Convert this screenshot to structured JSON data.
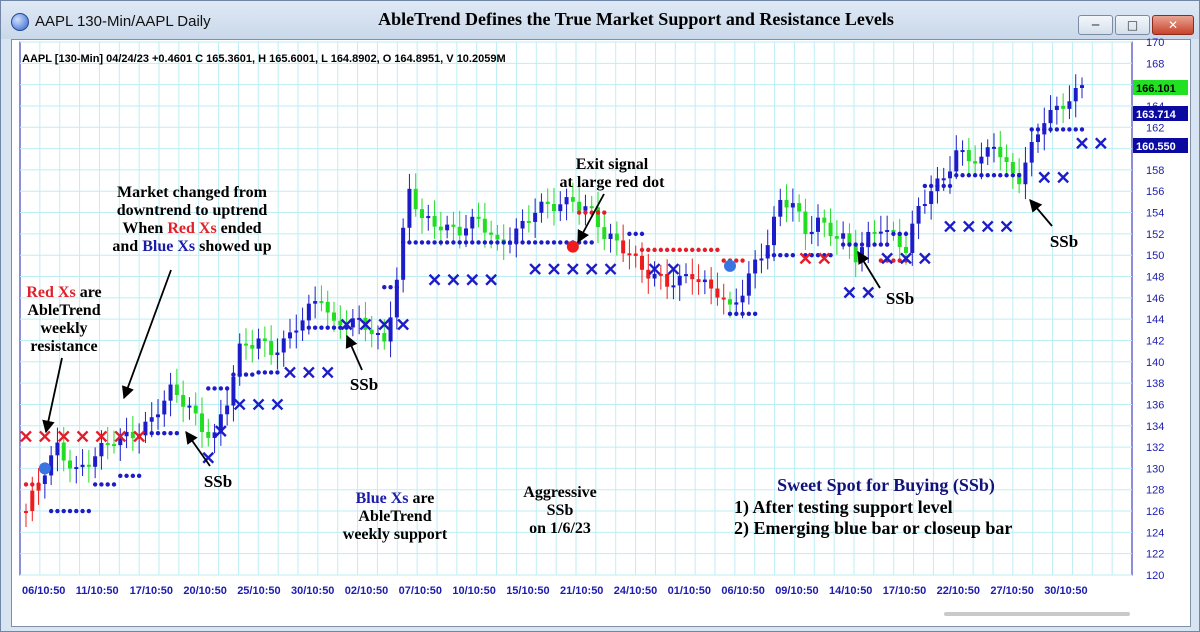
{
  "window": {
    "title": "AAPL 130-Min/AAPL Daily",
    "headline": "AbleTrend Defines the True Market Support and Resistance Levels",
    "buttons": {
      "minimize": "─",
      "maximize": "□",
      "close": "✕"
    }
  },
  "legend": "AAPL [130-Min] 04/24/23  +0.4601 C 165.3601, H 165.6001, L 164.8902, O 164.8951, V 10.2059M",
  "price_tags": [
    {
      "value": "166.101",
      "bg": "#22e022",
      "fg": "#000000"
    },
    {
      "value": "163.714",
      "bg": "#0a0aa0",
      "fg": "#ffffff"
    },
    {
      "value": "160.550",
      "bg": "#0a0aa0",
      "fg": "#ffffff"
    }
  ],
  "annotations": {
    "red_xs": [
      "Red Xs",
      " are",
      "AbleTrend",
      "weekly",
      "resistance"
    ],
    "market_changed": [
      "Market changed from",
      "downtrend to uptrend",
      "When ",
      "Red Xs",
      " ended",
      "and ",
      "Blue Xs",
      " showed up"
    ],
    "exit_signal": [
      "Exit signal",
      "at large red dot"
    ],
    "blue_xs": [
      "Blue Xs",
      " are",
      "AbleTrend",
      "weekly support"
    ],
    "aggressive": [
      "Aggressive",
      "SSb",
      "on 1/6/23"
    ],
    "ssb": "SSb",
    "sweet_spot": {
      "title": "Sweet Spot for Buying (SSb)",
      "item1": "1) After testing support level",
      "item2": "2) Emerging blue bar or closeup bar"
    }
  },
  "colors": {
    "grid": "#bdeef5",
    "up_bar": "#1c1cc8",
    "flat_bar": "#22dd22",
    "down_bar": "#ee1c1c",
    "support": "#1c1cc8",
    "resistance": "#e51c2a",
    "axis_text": "#1c1cb0"
  },
  "chart_data": {
    "type": "candlestick",
    "symbol": "AAPL",
    "ylim": [
      120,
      170
    ],
    "yticks": [
      120,
      122,
      124,
      126,
      128,
      130,
      132,
      134,
      136,
      138,
      140,
      142,
      144,
      146,
      148,
      150,
      152,
      154,
      156,
      158,
      160,
      162,
      164,
      166,
      168,
      170
    ],
    "xtick_labels": [
      "06/10:50",
      "11/10:50",
      "17/10:50",
      "20/10:50",
      "25/10:50",
      "30/10:50",
      "02/10:50",
      "07/10:50",
      "10/10:50",
      "15/10:50",
      "21/10:50",
      "24/10:50",
      "01/10:50",
      "06/10:50",
      "09/10:50",
      "14/10:50",
      "17/10:50",
      "22/10:50",
      "27/10:50",
      "30/10:50"
    ],
    "price_path": [
      [
        0,
        126.0
      ],
      [
        3,
        129.5
      ],
      [
        5,
        132.0
      ],
      [
        8,
        130.0
      ],
      [
        11,
        131.0
      ],
      [
        14,
        132.5
      ],
      [
        17,
        133.5
      ],
      [
        20,
        134.5
      ],
      [
        23,
        137.0
      ],
      [
        26,
        136.0
      ],
      [
        28,
        134.0
      ],
      [
        30,
        133.0
      ],
      [
        32,
        136.0
      ],
      [
        34,
        141.0
      ],
      [
        37,
        142.5
      ],
      [
        39,
        141.0
      ],
      [
        42,
        142.0
      ],
      [
        45,
        145.0
      ],
      [
        47,
        146.5
      ],
      [
        49,
        143.5
      ],
      [
        52,
        143.5
      ],
      [
        55,
        143.0
      ],
      [
        57,
        142.0
      ],
      [
        59,
        148.0
      ],
      [
        61,
        156.0
      ],
      [
        63,
        153.0
      ],
      [
        66,
        153.0
      ],
      [
        69,
        152.5
      ],
      [
        72,
        153.0
      ],
      [
        75,
        151.0
      ],
      [
        78,
        152.5
      ],
      [
        81,
        154.0
      ],
      [
        84,
        154.5
      ],
      [
        87,
        155.5
      ],
      [
        90,
        154.0
      ],
      [
        92,
        151.5
      ],
      [
        94,
        151.0
      ],
      [
        96,
        150.5
      ],
      [
        98,
        149.0
      ],
      [
        100,
        148.0
      ],
      [
        102,
        147.0
      ],
      [
        104,
        147.5
      ],
      [
        106,
        148.5
      ],
      [
        108,
        147.5
      ],
      [
        110,
        146.5
      ],
      [
        112,
        144.5
      ],
      [
        114,
        146.5
      ],
      [
        116,
        149.5
      ],
      [
        118,
        151.5
      ],
      [
        120,
        155.0
      ],
      [
        122,
        154.5
      ],
      [
        124,
        152.0
      ],
      [
        126,
        153.5
      ],
      [
        128,
        152.5
      ],
      [
        130,
        151.5
      ],
      [
        132,
        149.5
      ],
      [
        134,
        151.5
      ],
      [
        136,
        153.0
      ],
      [
        138,
        152.0
      ],
      [
        140,
        150.5
      ],
      [
        142,
        154.0
      ],
      [
        144,
        156.0
      ],
      [
        146,
        157.5
      ],
      [
        148,
        160.0
      ],
      [
        150,
        159.0
      ],
      [
        152,
        158.5
      ],
      [
        154,
        160.5
      ],
      [
        156,
        158.5
      ],
      [
        158,
        157.5
      ],
      [
        160,
        160.0
      ],
      [
        162,
        162.5
      ],
      [
        164,
        163.5
      ],
      [
        166,
        165.0
      ],
      [
        168,
        166.1
      ]
    ],
    "support_dots": [
      {
        "from": 4,
        "to": 10,
        "y": 126
      },
      {
        "from": 11,
        "to": 14,
        "y": 128.5
      },
      {
        "from": 15,
        "to": 18,
        "y": 129.3
      },
      {
        "from": 20,
        "to": 24,
        "y": 133.3
      },
      {
        "from": 29,
        "to": 32,
        "y": 137.5
      },
      {
        "from": 33,
        "to": 36,
        "y": 138.8
      },
      {
        "from": 37,
        "to": 40,
        "y": 139.0
      },
      {
        "from": 45,
        "to": 47,
        "y": 143.2
      },
      {
        "from": 48,
        "to": 51,
        "y": 143.2
      },
      {
        "from": 57,
        "to": 59,
        "y": 147.0
      },
      {
        "from": 60,
        "to": 90,
        "y": 151.2
      },
      {
        "from": 96,
        "to": 98,
        "y": 152.0
      },
      {
        "from": 112,
        "to": 116,
        "y": 144.5
      },
      {
        "from": 118,
        "to": 122,
        "y": 150.0
      },
      {
        "from": 124,
        "to": 128,
        "y": 150.0
      },
      {
        "from": 130,
        "to": 137,
        "y": 151.0
      },
      {
        "from": 138,
        "to": 141,
        "y": 152.0
      },
      {
        "from": 143,
        "to": 147,
        "y": 156.5
      },
      {
        "from": 148,
        "to": 158,
        "y": 157.5
      },
      {
        "from": 160,
        "to": 168,
        "y": 161.8
      }
    ],
    "resistance_dots": [
      {
        "from": 0,
        "to": 2,
        "y": 128.5
      },
      {
        "from": 88,
        "to": 92,
        "y": 154.0
      },
      {
        "from": 98,
        "to": 110,
        "y": 150.5
      },
      {
        "from": 111,
        "to": 114,
        "y": 149.5
      },
      {
        "from": 136,
        "to": 140,
        "y": 149.5
      }
    ],
    "support_xs": [
      {
        "from": 29,
        "to": 30,
        "y": 131.0
      },
      {
        "from": 31,
        "to": 32,
        "y": 133.5
      },
      {
        "from": 34,
        "to": 40,
        "y": 136.0
      },
      {
        "from": 42,
        "to": 50,
        "y": 139.0
      },
      {
        "from": 51,
        "to": 60,
        "y": 143.5
      },
      {
        "from": 65,
        "to": 75,
        "y": 147.7
      },
      {
        "from": 81,
        "to": 87,
        "y": 148.7
      },
      {
        "from": 90,
        "to": 93,
        "y": 148.7
      },
      {
        "from": 100,
        "to": 104,
        "y": 148.7
      },
      {
        "from": 131,
        "to": 134,
        "y": 146.5
      },
      {
        "from": 137,
        "to": 144,
        "y": 149.7
      },
      {
        "from": 147,
        "to": 158,
        "y": 152.7
      },
      {
        "from": 162,
        "to": 167,
        "y": 157.3
      },
      {
        "from": 168,
        "to": 173,
        "y": 160.5
      }
    ],
    "resistance_xs": [
      {
        "from": 0,
        "to": 18,
        "y": 133.0
      },
      {
        "from": 124,
        "to": 128,
        "y": 149.7
      }
    ],
    "big_dots": [
      {
        "i": 3,
        "y": 130.0,
        "color": "support"
      },
      {
        "i": 87,
        "y": 150.8,
        "color": "resistance"
      },
      {
        "i": 112,
        "y": 149.0,
        "color": "support"
      }
    ]
  }
}
